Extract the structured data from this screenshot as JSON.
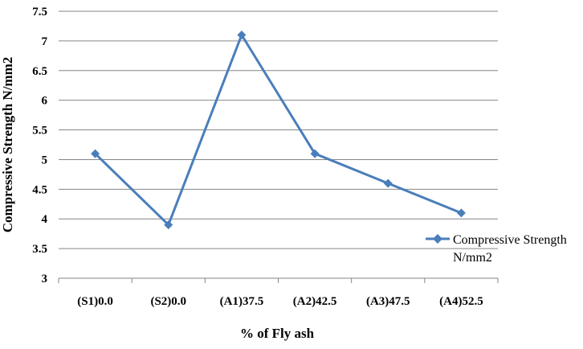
{
  "chart_data": {
    "type": "line",
    "categories": [
      "(S1)0.0",
      "(S2)0.0",
      "(A1)37.5",
      "(A2)42.5",
      "(A3)47.5",
      "(A4)52.5"
    ],
    "series": [
      {
        "name": "Compressive Strength N/mm2",
        "name_lines": [
          "Compressive Strength",
          "N/mm2"
        ],
        "values": [
          5.1,
          3.9,
          7.1,
          5.1,
          4.6,
          4.1
        ],
        "color": "#4a7ebb",
        "marker": "diamond"
      }
    ],
    "xlabel": "% of Fly ash",
    "ylabel": "Compressive Strength N/mm2",
    "ylim": [
      3,
      7.5
    ],
    "yticks": [
      "3",
      "3.5",
      "4",
      "4.5",
      "5",
      "5.5",
      "6",
      "6.5",
      "7",
      "7.5"
    ],
    "grid": true,
    "legend_position": "right"
  }
}
